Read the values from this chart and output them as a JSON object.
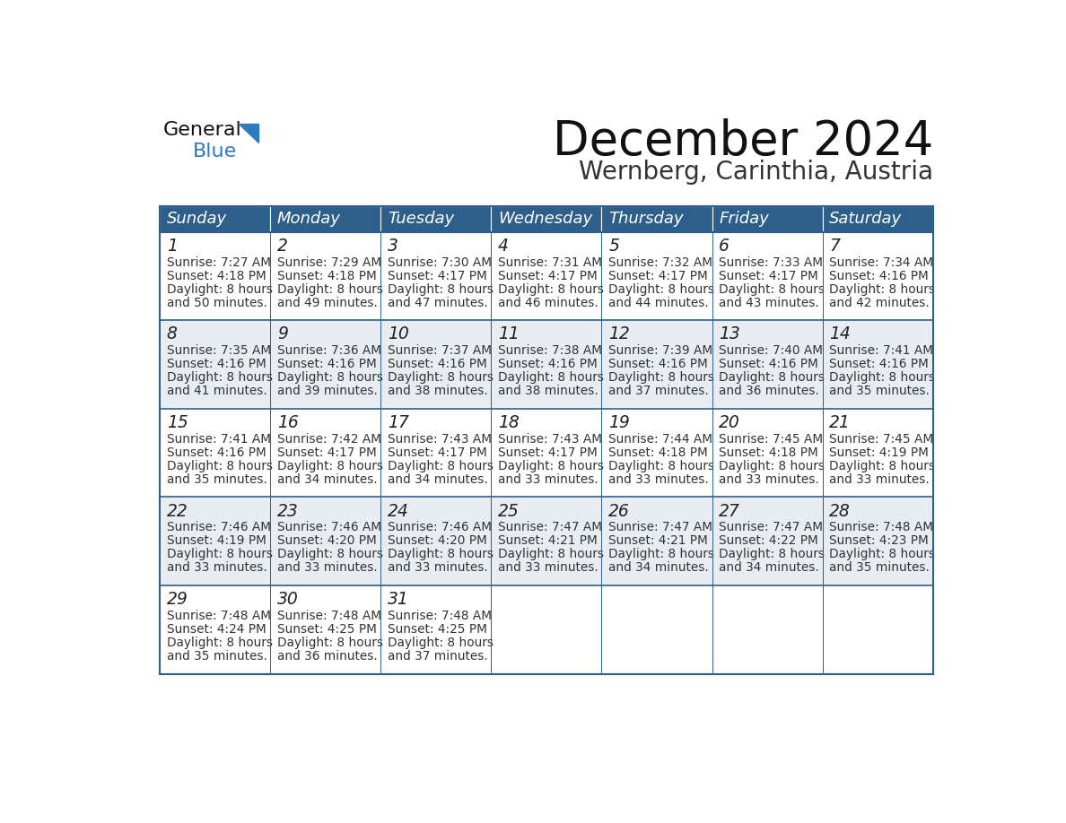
{
  "title": "December 2024",
  "subtitle": "Wernberg, Carinthia, Austria",
  "days_of_week": [
    "Sunday",
    "Monday",
    "Tuesday",
    "Wednesday",
    "Thursday",
    "Friday",
    "Saturday"
  ],
  "header_bg": "#2e5f8a",
  "header_text": "#ffffff",
  "cell_bg_odd": "#ffffff",
  "cell_bg_even": "#e8edf2",
  "border_color": "#2e5f8a",
  "day_num_color": "#222222",
  "cell_text_color": "#333333",
  "title_color": "#111111",
  "subtitle_color": "#333333",
  "logo_general_color": "#111111",
  "logo_blue_color": "#2e7abf",
  "weeks": [
    [
      {
        "day": 1,
        "sunrise": "7:27 AM",
        "sunset": "4:18 PM",
        "daylight_suffix": "50 minutes."
      },
      {
        "day": 2,
        "sunrise": "7:29 AM",
        "sunset": "4:18 PM",
        "daylight_suffix": "49 minutes."
      },
      {
        "day": 3,
        "sunrise": "7:30 AM",
        "sunset": "4:17 PM",
        "daylight_suffix": "47 minutes."
      },
      {
        "day": 4,
        "sunrise": "7:31 AM",
        "sunset": "4:17 PM",
        "daylight_suffix": "46 minutes."
      },
      {
        "day": 5,
        "sunrise": "7:32 AM",
        "sunset": "4:17 PM",
        "daylight_suffix": "44 minutes."
      },
      {
        "day": 6,
        "sunrise": "7:33 AM",
        "sunset": "4:17 PM",
        "daylight_suffix": "43 minutes."
      },
      {
        "day": 7,
        "sunrise": "7:34 AM",
        "sunset": "4:16 PM",
        "daylight_suffix": "42 minutes."
      }
    ],
    [
      {
        "day": 8,
        "sunrise": "7:35 AM",
        "sunset": "4:16 PM",
        "daylight_suffix": "41 minutes."
      },
      {
        "day": 9,
        "sunrise": "7:36 AM",
        "sunset": "4:16 PM",
        "daylight_suffix": "39 minutes."
      },
      {
        "day": 10,
        "sunrise": "7:37 AM",
        "sunset": "4:16 PM",
        "daylight_suffix": "38 minutes."
      },
      {
        "day": 11,
        "sunrise": "7:38 AM",
        "sunset": "4:16 PM",
        "daylight_suffix": "38 minutes."
      },
      {
        "day": 12,
        "sunrise": "7:39 AM",
        "sunset": "4:16 PM",
        "daylight_suffix": "37 minutes."
      },
      {
        "day": 13,
        "sunrise": "7:40 AM",
        "sunset": "4:16 PM",
        "daylight_suffix": "36 minutes."
      },
      {
        "day": 14,
        "sunrise": "7:41 AM",
        "sunset": "4:16 PM",
        "daylight_suffix": "35 minutes."
      }
    ],
    [
      {
        "day": 15,
        "sunrise": "7:41 AM",
        "sunset": "4:16 PM",
        "daylight_suffix": "35 minutes."
      },
      {
        "day": 16,
        "sunrise": "7:42 AM",
        "sunset": "4:17 PM",
        "daylight_suffix": "34 minutes."
      },
      {
        "day": 17,
        "sunrise": "7:43 AM",
        "sunset": "4:17 PM",
        "daylight_suffix": "34 minutes."
      },
      {
        "day": 18,
        "sunrise": "7:43 AM",
        "sunset": "4:17 PM",
        "daylight_suffix": "33 minutes."
      },
      {
        "day": 19,
        "sunrise": "7:44 AM",
        "sunset": "4:18 PM",
        "daylight_suffix": "33 minutes."
      },
      {
        "day": 20,
        "sunrise": "7:45 AM",
        "sunset": "4:18 PM",
        "daylight_suffix": "33 minutes."
      },
      {
        "day": 21,
        "sunrise": "7:45 AM",
        "sunset": "4:19 PM",
        "daylight_suffix": "33 minutes."
      }
    ],
    [
      {
        "day": 22,
        "sunrise": "7:46 AM",
        "sunset": "4:19 PM",
        "daylight_suffix": "33 minutes."
      },
      {
        "day": 23,
        "sunrise": "7:46 AM",
        "sunset": "4:20 PM",
        "daylight_suffix": "33 minutes."
      },
      {
        "day": 24,
        "sunrise": "7:46 AM",
        "sunset": "4:20 PM",
        "daylight_suffix": "33 minutes."
      },
      {
        "day": 25,
        "sunrise": "7:47 AM",
        "sunset": "4:21 PM",
        "daylight_suffix": "33 minutes."
      },
      {
        "day": 26,
        "sunrise": "7:47 AM",
        "sunset": "4:21 PM",
        "daylight_suffix": "34 minutes."
      },
      {
        "day": 27,
        "sunrise": "7:47 AM",
        "sunset": "4:22 PM",
        "daylight_suffix": "34 minutes."
      },
      {
        "day": 28,
        "sunrise": "7:48 AM",
        "sunset": "4:23 PM",
        "daylight_suffix": "35 minutes."
      }
    ],
    [
      {
        "day": 29,
        "sunrise": "7:48 AM",
        "sunset": "4:24 PM",
        "daylight_suffix": "35 minutes."
      },
      {
        "day": 30,
        "sunrise": "7:48 AM",
        "sunset": "4:25 PM",
        "daylight_suffix": "36 minutes."
      },
      {
        "day": 31,
        "sunrise": "7:48 AM",
        "sunset": "4:25 PM",
        "daylight_suffix": "37 minutes."
      },
      null,
      null,
      null,
      null
    ]
  ]
}
